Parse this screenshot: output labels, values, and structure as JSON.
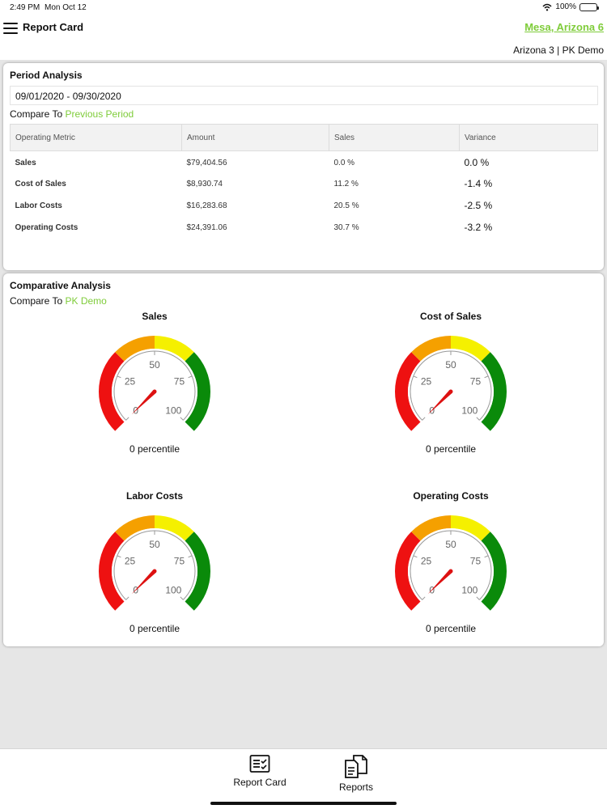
{
  "status_bar": {
    "time": "2:49 PM",
    "date": "Mon Oct 12",
    "battery": "100%"
  },
  "nav": {
    "title": "Report Card",
    "location": "Mesa, Arizona 6",
    "subtitle": "Arizona 3 | PK Demo"
  },
  "period_analysis": {
    "title": "Period Analysis",
    "date_range": "09/01/2020 - 09/30/2020",
    "compare_prefix": "Compare To",
    "compare_value": "Previous Period",
    "columns": [
      "Operating Metric",
      "Amount",
      "Sales",
      "Variance"
    ],
    "rows": [
      {
        "metric": "Sales",
        "amount": "$79,404.56",
        "sales": "0.0 %",
        "variance": "0.0 %"
      },
      {
        "metric": "Cost of Sales",
        "amount": "$8,930.74",
        "sales": "11.2 %",
        "variance": "-1.4 %"
      },
      {
        "metric": "Labor Costs",
        "amount": "$16,283.68",
        "sales": "20.5 %",
        "variance": "-2.5 %"
      },
      {
        "metric": "Operating Costs",
        "amount": "$24,391.06",
        "sales": "30.7 %",
        "variance": "-3.2 %"
      }
    ]
  },
  "comparative_analysis": {
    "title": "Comparative Analysis",
    "compare_prefix": "Compare To",
    "compare_value": "PK Demo",
    "ticks": [
      "0",
      "25",
      "50",
      "75",
      "100"
    ],
    "gauges": [
      {
        "title": "Sales",
        "value": 0,
        "label": "0 percentile"
      },
      {
        "title": "Cost of Sales",
        "value": 0,
        "label": "0 percentile"
      },
      {
        "title": "Labor Costs",
        "value": 0,
        "label": "0 percentile"
      },
      {
        "title": "Operating Costs",
        "value": 0,
        "label": "0 percentile"
      }
    ],
    "colors": {
      "red": "#ee1111",
      "orange": "#f5a000",
      "yellow": "#f5f000",
      "green": "#0a8a0a",
      "needle": "#dd1111"
    }
  },
  "tab_bar": {
    "tabs": [
      {
        "label": "Report Card",
        "icon": "report-card-icon"
      },
      {
        "label": "Reports",
        "icon": "reports-icon"
      }
    ]
  }
}
